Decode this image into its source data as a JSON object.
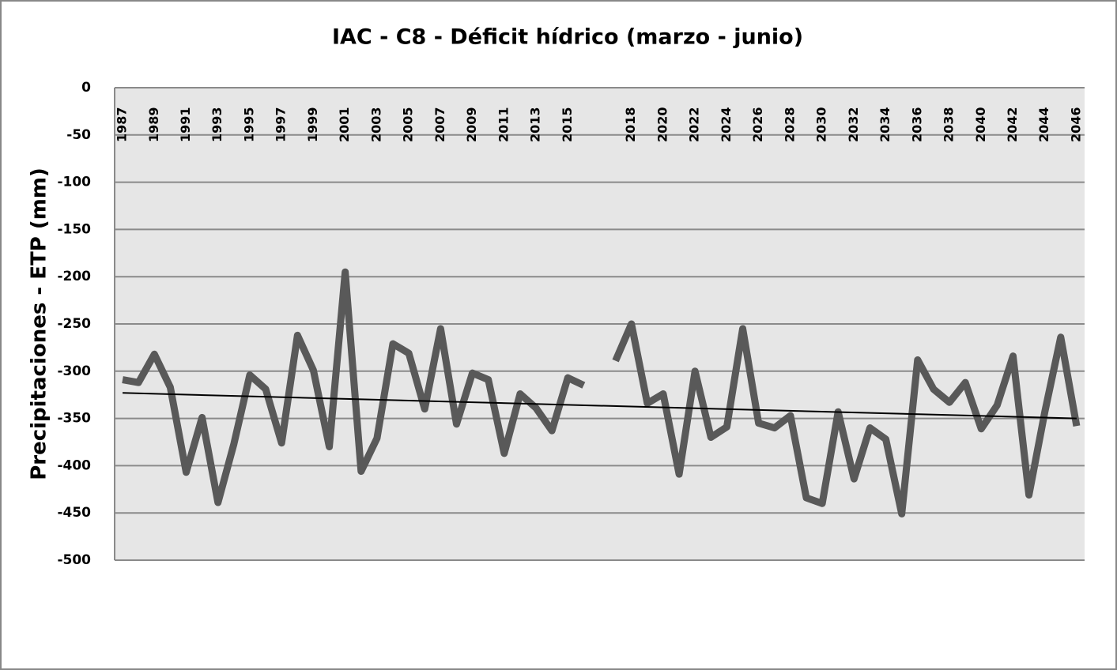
{
  "chart_data": {
    "type": "line",
    "title": "IAC - C8 - Déficit hídrico (marzo - junio)",
    "y_label": "Precipitaciones - ETP (mm)",
    "categories": [
      "1987",
      null,
      "1989",
      null,
      "1991",
      null,
      "1993",
      null,
      "1995",
      null,
      "1997",
      null,
      "1999",
      null,
      "2001",
      null,
      "2003",
      null,
      "2005",
      null,
      "2007",
      null,
      "2009",
      null,
      "2011",
      null,
      "2013",
      null,
      "2015",
      null,
      null,
      null,
      "2018",
      null,
      "2020",
      null,
      "2022",
      null,
      "2024",
      null,
      "2026",
      null,
      "2028",
      null,
      "2030",
      null,
      "2032",
      null,
      "2034",
      null,
      "2036",
      null,
      "2038",
      null,
      "2040",
      null,
      "2042",
      null,
      "2044",
      null,
      "2046"
    ],
    "series": [
      {
        "color": "#595959",
        "values": [
          -309,
          -312,
          -282,
          -317,
          -407,
          -349,
          -439,
          -377,
          -304,
          -319,
          -376,
          -262,
          -299,
          -380,
          -195,
          -406,
          -371,
          -271,
          -281,
          -340,
          -255,
          -356,
          -302,
          -309,
          -387,
          -324,
          -339,
          -363,
          -307,
          -315,
          null,
          -289,
          -250,
          -334,
          -324,
          -409,
          -300,
          -370,
          -359,
          -255,
          -355,
          -360,
          -347,
          -434,
          -440,
          -343,
          -414,
          -360,
          -372,
          -451,
          -288,
          -319,
          -333,
          -312,
          -361,
          -336,
          -284,
          -431,
          -343,
          -264,
          -358
        ]
      }
    ],
    "trendline": {
      "color": "#000000",
      "values": [
        -323,
        -350
      ]
    },
    "ylim": [
      -500,
      0
    ],
    "yticks": [
      0,
      -50,
      -100,
      -150,
      -200,
      -250,
      -300,
      -350,
      -400,
      -450,
      -500
    ],
    "grid": true,
    "x_axis_position": "top"
  }
}
